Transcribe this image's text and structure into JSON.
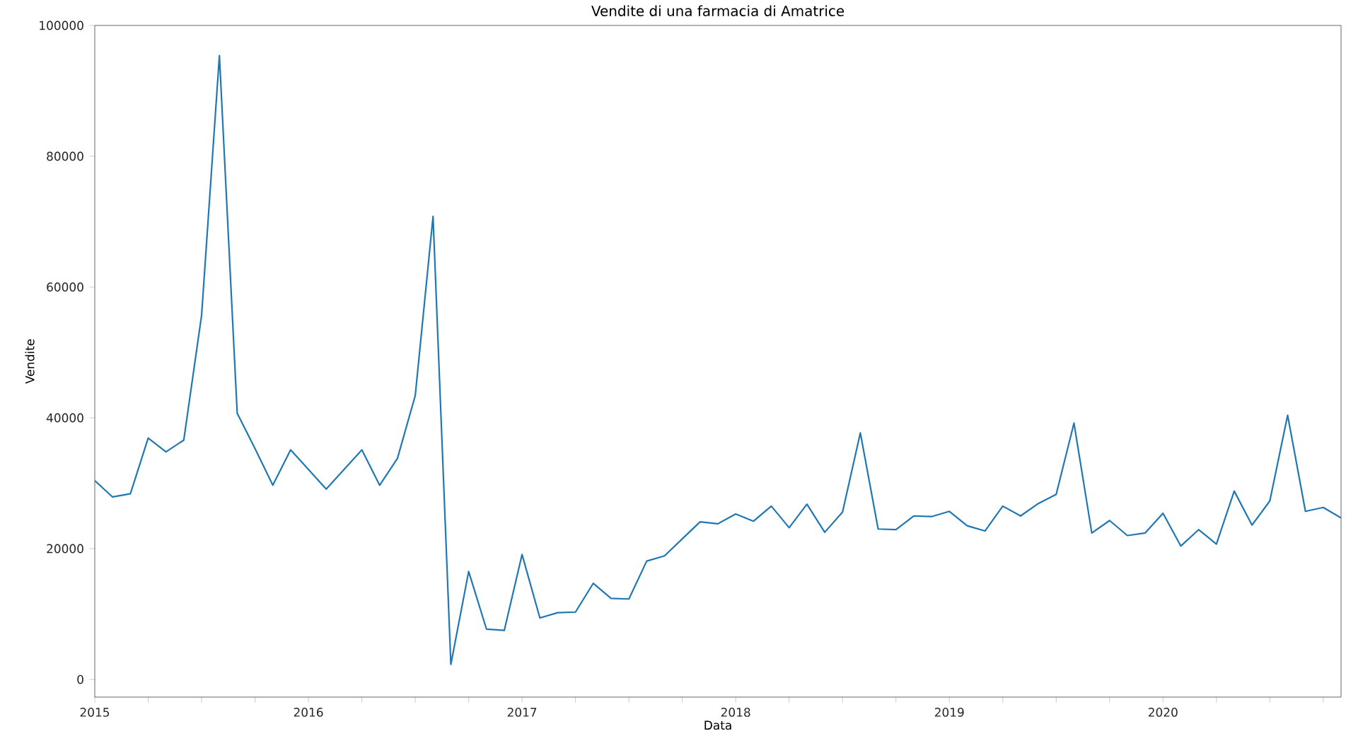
{
  "chart_data": {
    "type": "line",
    "title": "Vendite di una farmacia di Amatrice",
    "xlabel": "Data",
    "ylabel": "Vendite",
    "x": [
      "2015-01",
      "2015-02",
      "2015-03",
      "2015-04",
      "2015-05",
      "2015-06",
      "2015-07",
      "2015-08",
      "2015-09",
      "2015-10",
      "2015-11",
      "2015-12",
      "2016-01",
      "2016-02",
      "2016-03",
      "2016-04",
      "2016-05",
      "2016-06",
      "2016-07",
      "2016-08",
      "2016-09",
      "2016-10",
      "2016-11",
      "2016-12",
      "2017-01",
      "2017-02",
      "2017-03",
      "2017-04",
      "2017-05",
      "2017-06",
      "2017-07",
      "2017-08",
      "2017-09",
      "2017-10",
      "2017-11",
      "2017-12",
      "2018-01",
      "2018-02",
      "2018-03",
      "2018-04",
      "2018-05",
      "2018-06",
      "2018-07",
      "2018-08",
      "2018-09",
      "2018-10",
      "2018-11",
      "2018-12",
      "2019-01",
      "2019-02",
      "2019-03",
      "2019-04",
      "2019-05",
      "2019-06",
      "2019-07",
      "2019-08",
      "2019-09",
      "2019-10",
      "2019-11",
      "2019-12",
      "2020-01",
      "2020-02",
      "2020-03",
      "2020-04",
      "2020-05",
      "2020-06",
      "2020-07",
      "2020-08",
      "2020-09",
      "2020-10",
      "2020-11"
    ],
    "series": [
      {
        "color": "#1f77b4",
        "values": [
          30400,
          27900,
          28400,
          36900,
          34800,
          36600,
          55700,
          95400,
          40700,
          35300,
          29700,
          35100,
          32100,
          29100,
          32100,
          35100,
          29700,
          33800,
          43400,
          70800,
          2300,
          16500,
          7700,
          7500,
          19100,
          9400,
          10200,
          10300,
          14700,
          12400,
          12300,
          18100,
          18900,
          21500,
          24100,
          23800,
          25300,
          24200,
          26500,
          23200,
          26800,
          22500,
          25600,
          37700,
          23000,
          22900,
          25000,
          24900,
          25700,
          23500,
          22700,
          26500,
          25000,
          26900,
          28300,
          39200,
          22400,
          24300,
          22000,
          22400,
          25400,
          20400,
          22900,
          20700,
          28800,
          23600,
          27300,
          40400,
          25700,
          26300,
          24700
        ]
      }
    ],
    "xlim": [
      "2015-01",
      "2020-11"
    ],
    "xticks": [
      "2015",
      {
        "value": "2015-04",
        "label": null
      },
      {
        "value": "2015-07",
        "label": null
      },
      {
        "value": "2015-10",
        "label": null
      },
      "2016",
      {
        "value": "2016-04",
        "label": null
      },
      {
        "value": "2016-07",
        "label": null
      },
      {
        "value": "2016-10",
        "label": null
      },
      "2017",
      {
        "value": "2017-04",
        "label": null
      },
      {
        "value": "2017-07",
        "label": null
      },
      {
        "value": "2017-10",
        "label": null
      },
      "2018",
      {
        "value": "2018-04",
        "label": null
      },
      {
        "value": "2018-07",
        "label": null
      },
      {
        "value": "2018-10",
        "label": null
      },
      "2019",
      {
        "value": "2019-04",
        "label": null
      },
      {
        "value": "2019-07",
        "label": null
      },
      {
        "value": "2019-10",
        "label": null
      },
      "2020",
      {
        "value": "2020-04",
        "label": null
      },
      {
        "value": "2020-07",
        "label": null
      },
      {
        "value": "2020-10",
        "label": null
      }
    ],
    "ylim": [
      -2700,
      100000
    ],
    "yticks": [
      0,
      20000,
      40000,
      60000,
      80000,
      100000
    ],
    "marker": "none",
    "line_style": "solid"
  }
}
